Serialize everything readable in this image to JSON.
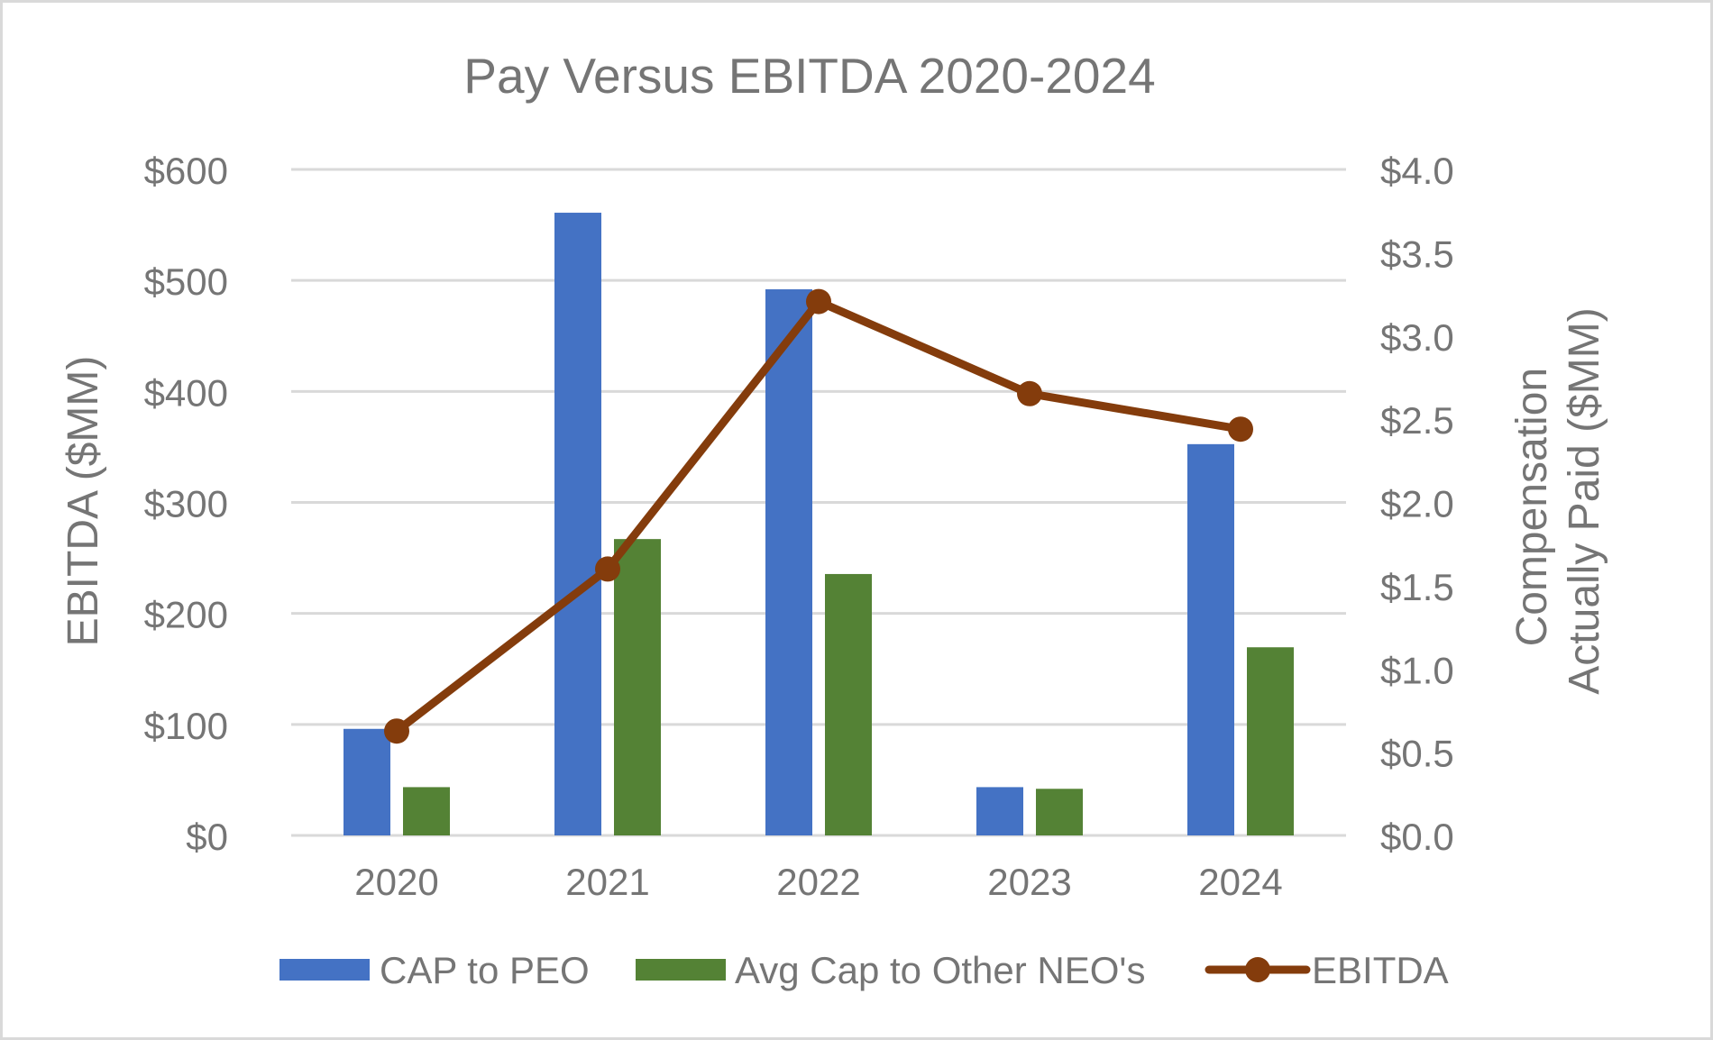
{
  "chart_data": {
    "type": "bar",
    "title": "Pay Versus EBITDA 2020-2024",
    "categories": [
      "2020",
      "2021",
      "2022",
      "2023",
      "2024"
    ],
    "series": [
      {
        "name": "CAP to PEO",
        "kind": "bar",
        "axis": "right",
        "color": "#4472c4",
        "values": [
          0.64,
          3.74,
          3.28,
          0.29,
          2.35
        ]
      },
      {
        "name": "Avg Cap to Other NEO's",
        "kind": "bar",
        "axis": "right",
        "color": "#548235",
        "values": [
          0.29,
          1.78,
          1.57,
          0.28,
          1.13
        ]
      },
      {
        "name": "EBITDA",
        "kind": "line",
        "axis": "left",
        "color": "#843c0c",
        "values": [
          94,
          240,
          481,
          398,
          366
        ]
      }
    ],
    "y_left": {
      "label": "EBITDA ($MM)",
      "range": [
        0,
        600
      ],
      "ticks": [
        0,
        100,
        200,
        300,
        400,
        500,
        600
      ],
      "tick_labels": [
        "$0",
        "$100",
        "$200",
        "$300",
        "$400",
        "$500",
        "$600"
      ]
    },
    "y_right": {
      "label_lines": [
        "Compensation",
        "Actually Paid ($MM)"
      ],
      "range": [
        0,
        4
      ],
      "ticks": [
        0,
        0.5,
        1,
        1.5,
        2,
        2.5,
        3,
        3.5,
        4
      ],
      "tick_labels": [
        "$0.0",
        "$0.5",
        "$1.0",
        "$1.5",
        "$2.0",
        "$2.5",
        "$3.0",
        "$3.5",
        "$4.0"
      ]
    },
    "grid": true,
    "legend_position": "bottom",
    "colors": {
      "text": "#757575",
      "grid": "#d9d9d9",
      "border": "#d9d9d9"
    }
  }
}
